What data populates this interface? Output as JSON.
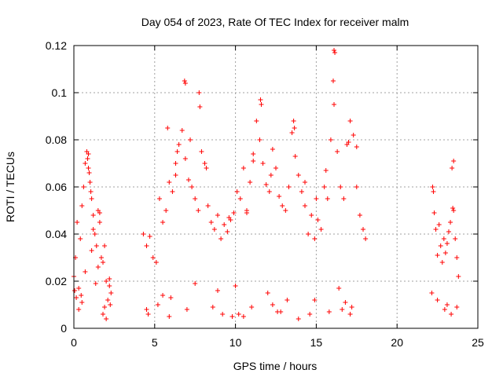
{
  "chart_data": {
    "type": "scatter",
    "title": "Day 054 of 2023, Rate Of TEC Index for receiver malm",
    "xlabel": "GPS time / hours",
    "ylabel": "ROTI / TECUs",
    "xlim": [
      0,
      25
    ],
    "ylim": [
      0,
      0.12
    ],
    "x_ticks": [
      0,
      5,
      10,
      15,
      20,
      25
    ],
    "x_tick_labels": [
      "0",
      "5",
      "10",
      "15",
      "20",
      "25"
    ],
    "y_ticks": [
      0,
      0.02,
      0.04,
      0.06,
      0.08,
      0.1,
      0.12
    ],
    "y_tick_labels": [
      "0",
      "0.02",
      "0.04",
      "0.06",
      "0.08",
      "0.1",
      "0.12"
    ],
    "grid": true,
    "marker": "+",
    "color": "#ff0000",
    "series": [
      {
        "x": [
          0.0,
          0.1,
          0.2,
          0.3,
          0.4,
          0.5,
          0.6,
          0.7,
          0.8,
          0.9,
          1.0,
          1.1,
          1.2,
          1.3,
          1.4,
          1.5,
          1.6,
          1.7,
          1.8,
          1.9,
          2.0,
          2.1,
          2.2,
          2.3,
          0.85,
          0.9,
          0.95,
          1.05,
          1.2,
          1.6,
          0.5,
          0.3,
          1.8,
          2.0,
          0.15,
          0.7,
          1.35,
          1.9,
          2.2,
          0.45,
          1.1,
          1.5,
          0.05,
          2.25,
          4.3,
          4.5,
          4.7,
          4.9,
          5.1,
          5.3,
          5.5,
          5.7,
          5.9,
          6.1,
          6.3,
          6.5,
          6.7,
          6.9,
          7.1,
          7.3,
          7.5,
          7.7,
          7.9,
          8.1,
          8.3,
          8.5,
          8.7,
          8.9,
          9.1,
          9.3,
          9.5,
          9.7,
          9.9,
          10.1,
          10.3,
          10.5,
          10.7,
          10.9,
          11.1,
          11.3,
          11.5,
          11.7,
          11.9,
          12.1,
          12.3,
          12.5,
          12.7,
          12.9,
          13.1,
          13.3,
          13.5,
          13.7,
          13.9,
          14.1,
          14.3,
          14.5,
          14.7,
          14.9,
          15.1,
          15.3,
          15.5,
          15.7,
          15.9,
          16.1,
          16.3,
          16.5,
          16.7,
          16.9,
          17.1,
          17.3,
          17.5,
          17.7,
          17.9,
          18.05,
          6.85,
          6.9,
          7.75,
          7.8,
          6.4,
          6.3,
          5.8,
          7.2,
          8.2,
          11.55,
          11.6,
          13.6,
          13.65,
          16.1,
          16.15,
          16.05,
          15.6,
          17.0,
          17.5,
          11.1,
          12.2,
          14.3,
          15.0,
          10.7,
          9.6,
          4.6,
          4.5,
          5.9,
          9.2,
          13.9,
          12.8,
          17.2,
          10.5,
          14.6,
          5.2,
          16.6,
          12.6,
          8.6,
          10.2,
          9.8,
          7.0,
          15.8,
          17.1,
          12.3,
          11.0,
          13.2,
          16.8,
          6.0,
          14.9,
          5.5,
          8.9,
          10.0,
          12.0,
          16.4,
          7.5,
          22.2,
          22.3,
          22.4,
          22.5,
          22.6,
          22.7,
          22.8,
          22.9,
          23.0,
          23.1,
          23.2,
          23.3,
          23.4,
          23.5,
          23.6,
          23.7,
          23.8,
          23.45,
          23.5,
          22.25,
          23.1,
          22.95,
          23.35,
          22.5,
          23.7,
          22.15
        ],
        "y": [
          0.022,
          0.03,
          0.045,
          0.017,
          0.038,
          0.052,
          0.06,
          0.07,
          0.075,
          0.068,
          0.062,
          0.055,
          0.048,
          0.04,
          0.035,
          0.05,
          0.045,
          0.03,
          0.028,
          0.035,
          0.02,
          0.012,
          0.018,
          0.015,
          0.072,
          0.074,
          0.066,
          0.058,
          0.042,
          0.049,
          0.011,
          0.008,
          0.006,
          0.004,
          0.013,
          0.024,
          0.019,
          0.009,
          0.021,
          0.014,
          0.033,
          0.026,
          0.016,
          0.01,
          0.04,
          0.035,
          0.039,
          0.03,
          0.028,
          0.055,
          0.045,
          0.05,
          0.062,
          0.058,
          0.065,
          0.078,
          0.084,
          0.072,
          0.063,
          0.06,
          0.055,
          0.05,
          0.075,
          0.07,
          0.052,
          0.045,
          0.042,
          0.048,
          0.038,
          0.044,
          0.041,
          0.046,
          0.049,
          0.058,
          0.055,
          0.068,
          0.05,
          0.062,
          0.074,
          0.088,
          0.08,
          0.07,
          0.061,
          0.058,
          0.076,
          0.068,
          0.056,
          0.052,
          0.05,
          0.06,
          0.083,
          0.073,
          0.065,
          0.058,
          0.052,
          0.04,
          0.048,
          0.038,
          0.046,
          0.042,
          0.06,
          0.055,
          0.08,
          0.095,
          0.075,
          0.06,
          0.055,
          0.078,
          0.088,
          0.082,
          0.06,
          0.048,
          0.042,
          0.038,
          0.105,
          0.104,
          0.1,
          0.094,
          0.075,
          0.07,
          0.085,
          0.08,
          0.068,
          0.097,
          0.095,
          0.088,
          0.085,
          0.118,
          0.117,
          0.105,
          0.067,
          0.079,
          0.077,
          0.071,
          0.065,
          0.062,
          0.055,
          0.049,
          0.047,
          0.006,
          0.008,
          0.005,
          0.006,
          0.004,
          0.007,
          0.009,
          0.005,
          0.006,
          0.01,
          0.008,
          0.007,
          0.009,
          0.006,
          0.005,
          0.008,
          0.007,
          0.006,
          0.01,
          0.009,
          0.012,
          0.011,
          0.013,
          0.012,
          0.014,
          0.016,
          0.018,
          0.015,
          0.017,
          0.019,
          0.06,
          0.049,
          0.042,
          0.031,
          0.044,
          0.035,
          0.028,
          0.038,
          0.032,
          0.036,
          0.041,
          0.045,
          0.068,
          0.071,
          0.038,
          0.03,
          0.022,
          0.051,
          0.05,
          0.058,
          0.01,
          0.008,
          0.006,
          0.012,
          0.009,
          0.015
        ]
      }
    ]
  }
}
